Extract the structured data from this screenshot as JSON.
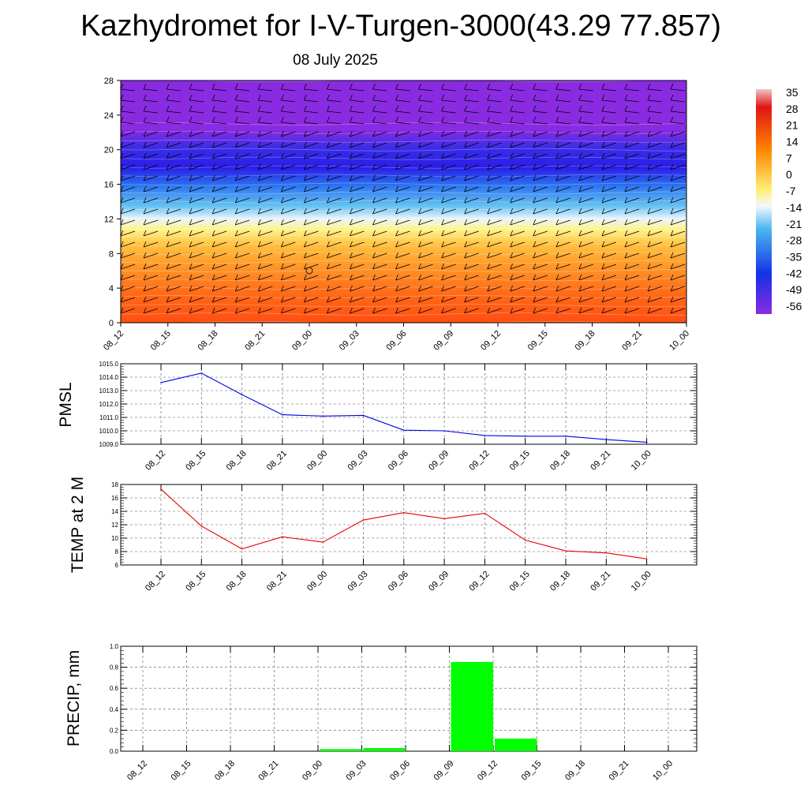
{
  "title": "Kazhydromet for I-V-Turgen-3000(43.29 77.857)",
  "subtitle": "08 July 2025",
  "colorbar": {
    "labels": [
      "35",
      "28",
      "21",
      "14",
      "7",
      "0",
      "-7",
      "-14",
      "-21",
      "-28",
      "-35",
      "-42",
      "-49",
      "-56"
    ],
    "colors": {
      "warm_light": "#f2c4c4",
      "red": "#e01414",
      "orange": "#ff8c00",
      "yellow": "#fff07a",
      "pale": "#f2f8ff",
      "cyan": "#4cb8f0",
      "blue": "#1432e6",
      "violet": "#8a2be2"
    }
  },
  "chart_data": [
    {
      "type": "heatmap",
      "title": "",
      "xlabel": "",
      "ylabel": "",
      "x_ticks": [
        "08_12",
        "08_15",
        "08_18",
        "08_21",
        "09_00",
        "09_03",
        "09_06",
        "09_09",
        "09_12",
        "09_15",
        "09_18",
        "09_21",
        "10_00"
      ],
      "y_ticks": [
        "0",
        "4",
        "8",
        "12",
        "16",
        "20",
        "24",
        "28"
      ],
      "ylim": [
        0,
        28
      ],
      "fill_colors": {
        "bottom": "#ff4e12",
        "mid_orange": "#ff9a2a",
        "yellow": "#fff38a",
        "pale": "#eaf4ff",
        "light_blue": "#66c4f2",
        "blue": "#2a6ff0",
        "deep_blue": "#2a1ee8",
        "top": "#8a2be2"
      },
      "band_levels": [
        0,
        1,
        2,
        3,
        4,
        5,
        6,
        7,
        8,
        9,
        10,
        10.8,
        11.3,
        12,
        13,
        14,
        15,
        16,
        17,
        18,
        19,
        20,
        21,
        22,
        23,
        28
      ]
    },
    {
      "type": "line",
      "title": "",
      "xlabel": "",
      "ylabel": "PMSL",
      "categories": [
        "08_12",
        "08_15",
        "08_18",
        "08_21",
        "09_00",
        "09_03",
        "09_06",
        "09_09",
        "09_12",
        "09_15",
        "09_18",
        "09_21",
        "10_00"
      ],
      "y_ticks": [
        "1009.0",
        "1010.0",
        "1011.0",
        "1012.0",
        "1013.0",
        "1014.0",
        "1015.0"
      ],
      "ylim": [
        1009,
        1015
      ],
      "grid": true,
      "color": "#0000e6",
      "values": [
        1013.6,
        1014.3,
        1012.7,
        1011.2,
        1011.1,
        1011.15,
        1010.05,
        1010.0,
        1009.65,
        1009.6,
        1009.6,
        1009.35,
        1009.15
      ]
    },
    {
      "type": "line",
      "title": "",
      "xlabel": "",
      "ylabel": "TEMP at 2 M",
      "categories": [
        "08_12",
        "08_15",
        "08_18",
        "08_21",
        "09_00",
        "09_03",
        "09_06",
        "09_09",
        "09_12",
        "09_15",
        "09_18",
        "09_21",
        "10_00"
      ],
      "y_ticks": [
        "6",
        "8",
        "10",
        "12",
        "14",
        "16",
        "18"
      ],
      "ylim": [
        6,
        18
      ],
      "grid": true,
      "color": "#e60000",
      "values": [
        17.3,
        11.8,
        8.4,
        10.2,
        9.4,
        12.7,
        13.8,
        12.9,
        13.7,
        9.7,
        8.1,
        7.8,
        6.9
      ]
    },
    {
      "type": "bar",
      "title": "",
      "xlabel": "",
      "ylabel": "PRECIP, mm",
      "categories": [
        "08_12",
        "08_15",
        "08_18",
        "08_21",
        "09_00",
        "09_03",
        "09_06",
        "09_09",
        "09_12",
        "09_15",
        "09_18",
        "09_21",
        "10_00"
      ],
      "y_ticks": [
        "0.0",
        "0.2",
        "0.4",
        "0.6",
        "0.8",
        "1.0"
      ],
      "ylim": [
        0,
        1.0
      ],
      "grid": true,
      "color": "#00ff00",
      "values": [
        0,
        0,
        0,
        0,
        0.02,
        0.03,
        0,
        0.85,
        0.12,
        0,
        0,
        0,
        0
      ]
    }
  ]
}
